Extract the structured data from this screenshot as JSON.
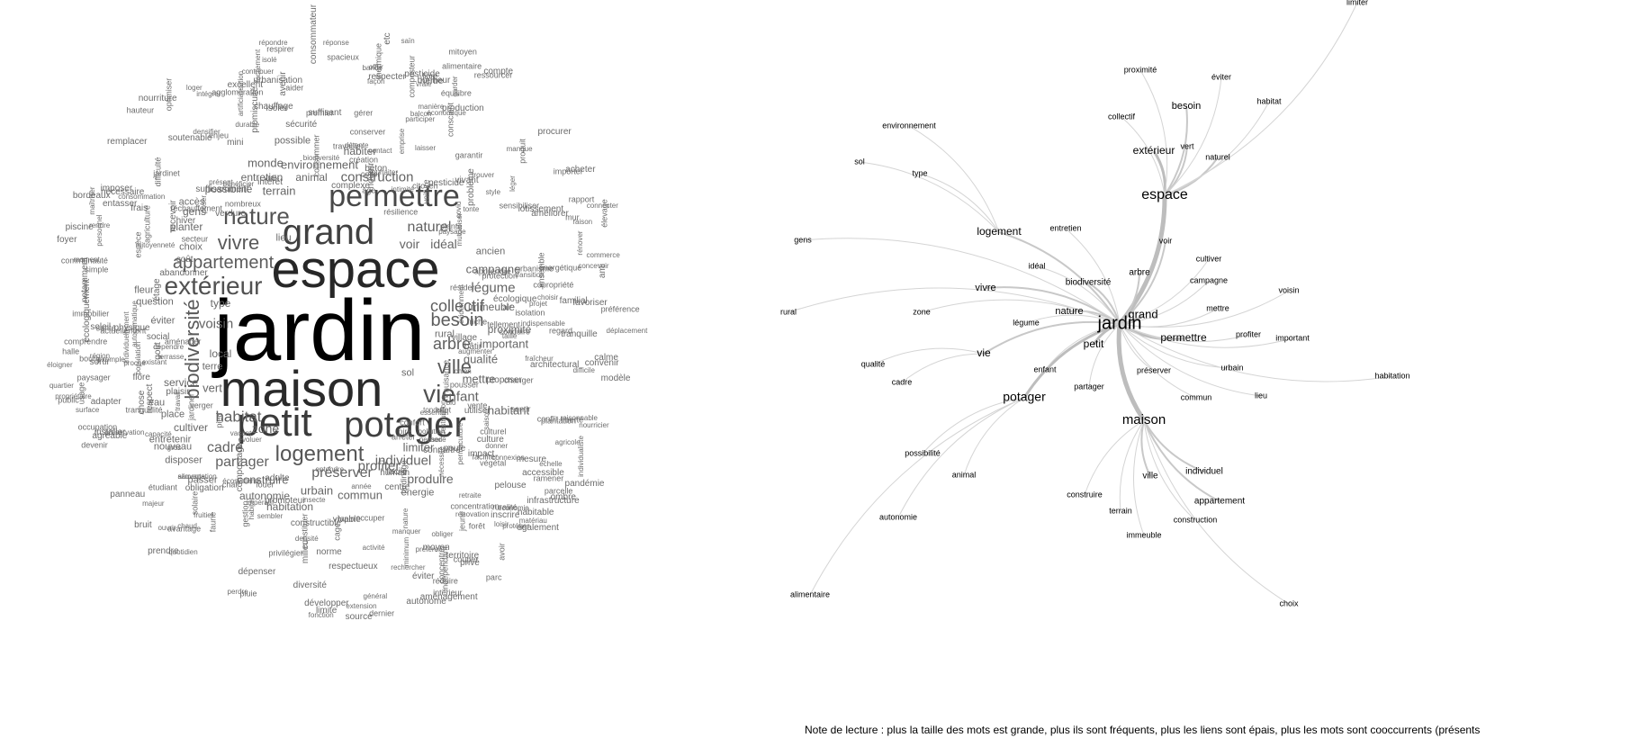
{
  "wordcloud": {
    "big": [
      "jardin",
      "espace",
      "maison",
      "petit",
      "potager",
      "grand",
      "permettre",
      "extérieur",
      "vie",
      "nature",
      "logement",
      "ville",
      "biodiversité",
      "appartement",
      "vivre",
      "besoin",
      "collectif",
      "arbre",
      "habitat",
      "préserver",
      "partager",
      "cadre",
      "zone",
      "naturel",
      "construction",
      "voisin",
      "enfant",
      "légume",
      "environnement",
      "habitant",
      "individuel",
      "profiter",
      "produire",
      "construire",
      "autonomie",
      "urbain",
      "commun",
      "possibilité",
      "terrain",
      "monde",
      "campagne",
      "important",
      "qualité",
      "mettre",
      "proximité",
      "vert",
      "idéal",
      "voir",
      "service",
      "planter",
      "gens",
      "cultiver",
      "habiter",
      "animal",
      "entretien",
      "immeuble",
      "type",
      "local",
      "terre",
      "lieu",
      "rural",
      "ancien",
      "choix",
      "nouveau",
      "entretenir",
      "place",
      "limiter",
      "disposer",
      "passer",
      "sol",
      "habitation",
      "énergie",
      "eau",
      "tranquillité",
      "question",
      "éviter",
      "fleur",
      "accès",
      "possible"
    ],
    "small": [
      "individuellement",
      "respect",
      "hiver",
      "mitoyenneté",
      "élevage",
      "résider",
      "intérêt",
      "abandonner",
      "compostage",
      "extension",
      "réchauffement",
      "pollution",
      "changer",
      "protection",
      "occupation",
      "entendre",
      "diversité",
      "rapport",
      "louer",
      "excellent",
      "conduire",
      "pandémie",
      "recevoir",
      "mutualiser",
      "urbanisation",
      "général",
      "moment",
      "constituer",
      "année",
      "goût",
      "adapter",
      "aider",
      "individualiste",
      "jardinage",
      "plaisir",
      "étage",
      "mini",
      "public",
      "soleil",
      "foyer",
      "copropriété",
      "spacieux",
      "produit",
      "quartier",
      "manquer",
      "ensemble",
      "moyen",
      "pluie",
      "résilience",
      "léger",
      "gros",
      "liberté",
      "économie",
      "premier",
      "procurer",
      "emprise",
      "inscrire",
      "insecte",
      "lotissement",
      "milieu",
      "énergétique",
      "espèce",
      "équilibre",
      "poser",
      "bruit",
      "surface",
      "tonte",
      "proposer",
      "manière",
      "aménager",
      "consommation",
      "indispensable",
      "utiliser",
      "commerce",
      "compte",
      "maîtriser",
      "suffisamment",
      "artificialisation",
      "permaculture",
      "physique",
      "saison",
      "nécessité",
      "culture",
      "flore",
      "chaud",
      "coller",
      "usage",
      "respecter",
      "donner",
      "pied",
      "consommer",
      "chose",
      "préservation",
      "concevoir",
      "promoteur",
      "vivant",
      "couper",
      "faune",
      "déplacement",
      "source",
      "présent",
      "réponse",
      "village",
      "activité",
      "cage",
      "architectural",
      "apprendre",
      "poule",
      "nécessaire",
      "vrai",
      "perdre",
      "adulte",
      "complexe",
      "rendre",
      "bonheur",
      "promiscuité",
      "existant",
      "évoluer",
      "confort",
      "nuisance",
      "gestion",
      "ressourcer",
      "sensibiliser",
      "soutenable",
      "respirer",
      "entasser",
      "panneau",
      "mesure",
      "béton",
      "bio",
      "habitable",
      "proche",
      "protéger",
      "minimum",
      "devenir",
      "détente",
      "tondu",
      "dernier",
      "loger",
      "frais",
      "arrêter",
      "pesticide",
      "accessible",
      "nourriture",
      "concentrer",
      "secteur",
      "connaître",
      "offrir",
      "garantir",
      "citoyen",
      "ramener",
      "laisser",
      "social",
      "consommateur",
      "évidemment",
      "rénover",
      "privilégier",
      "gérer",
      "durable",
      "vacant",
      "bâtir",
      "sortir",
      "éloigner",
      "avenir",
      "agglomération",
      "parcelle",
      "centre",
      "capacité",
      "exemple",
      "optimiser",
      "conscient",
      "mode",
      "suffisant",
      "ombre",
      "majeur",
      "occuper",
      "loisir",
      "développer",
      "bordeaux",
      "libre",
      "propriétaire",
      "regard",
      "aménagement",
      "pousser",
      "taille",
      "écologique",
      "communauté",
      "isolation",
      "modèle",
      "territoire",
      "quotidien",
      "herbe",
      "échelle",
      "concentration",
      "style",
      "imposer",
      "sentir",
      "intimité",
      "tranquille",
      "balcon",
      "halle",
      "calme",
      "penser",
      "manque",
      "façon",
      "thermique",
      "souhaiter",
      "mur",
      "ouvrir",
      "paysage",
      "privé",
      "voiture",
      "retraite",
      "essentiel",
      "réduire",
      "autonome",
      "isolé",
      "projet",
      "isoler",
      "population",
      "effet",
      "autoclimatique",
      "saïn",
      "dépendre",
      "répondre",
      "paysager",
      "région",
      "conserver",
      "plante",
      "etc",
      "fruitier",
      "composteur",
      "destruction",
      "familial",
      "enjeu",
      "piscine",
      "préférer",
      "facilement",
      "conflit",
      "convenir",
      "norme",
      "humain",
      "travail",
      "choisir",
      "lapin",
      "difficulté",
      "nourricier",
      "chien",
      "facile",
      "favoriser",
      "fraîcheur",
      "agricole",
      "ami",
      "augmenter",
      "intérieur",
      "biodiversité",
      "plantation",
      "production",
      "prendre",
      "jardiner",
      "agréable",
      "air",
      "verger",
      "covid",
      "alimentation",
      "limite",
      "végétal",
      "chat",
      "mitoyen",
      "parc",
      "solaire",
      "forêt",
      "personnel",
      "impact",
      "âge",
      "terrasse",
      "densité",
      "écosystème",
      "préférence",
      "création",
      "faciliter",
      "avoir",
      "transition",
      "contribuer",
      "sauvage",
      "bénéficier",
      "également",
      "rénovation",
      "notamment",
      "pelouse",
      "obliger",
      "ruralité",
      "comprendre",
      "participer",
      "nombreux",
      "sembler",
      "contact",
      "difficile",
      "raisonnable",
      "urbanisme",
      "actuellement",
      "connecter",
      "chauffage",
      "problème",
      "importer",
      "simple",
      "bande",
      "pire",
      "intégrer",
      "indépendant",
      "garder",
      "travailler",
      "nourrir",
      "coût",
      "acheter",
      "jeune",
      "santé",
      "économique",
      "bourg",
      "avantage",
      "trouver",
      "obligation",
      "agriculture",
      "friche",
      "constructible",
      "dépenser",
      "sécurité",
      "matériau",
      "infrastructure",
      "installer",
      "raison",
      "culturel",
      "respectueux",
      "connexion",
      "améliorer",
      "écologiquement",
      "immobilier",
      "hauteur",
      "densifier",
      "tellement",
      "fonction",
      "éviter",
      "vente",
      "alimentaire",
      "verdure",
      "étudiant",
      "vivable",
      "pesticide",
      "remplacer",
      "nature",
      "habiter",
      "vraie",
      "rechercher",
      "jardinet",
      "impératif"
    ]
  },
  "graph": {
    "nodes": [
      "jardin",
      "espace",
      "maison",
      "potager",
      "grand",
      "petit",
      "permettre",
      "extérieur",
      "besoin",
      "vie",
      "vivre",
      "nature",
      "logement",
      "biodiversité",
      "arbre",
      "légume",
      "zone",
      "qualité",
      "cadre",
      "enfant",
      "partager",
      "préserver",
      "urbain",
      "commun",
      "lieu",
      "habitation",
      "important",
      "profiter",
      "mettre",
      "campagne",
      "cultiver",
      "voisin",
      "voir",
      "naturel",
      "vert",
      "éviter",
      "habitat",
      "collectif",
      "proximité",
      "environnement",
      "sol",
      "type",
      "gens",
      "rural",
      "idéal",
      "entretien",
      "possibilité",
      "animal",
      "autonomie",
      "alimentaire",
      "construire",
      "terrain",
      "immeuble",
      "ville",
      "individuel",
      "appartement",
      "construction",
      "choix",
      "limiter"
    ],
    "note": "Note de lecture : plus la taille des mots est grande, plus ils sont fréquents, plus les liens sont épais, plus les mots sont cooccurrents (présents"
  }
}
